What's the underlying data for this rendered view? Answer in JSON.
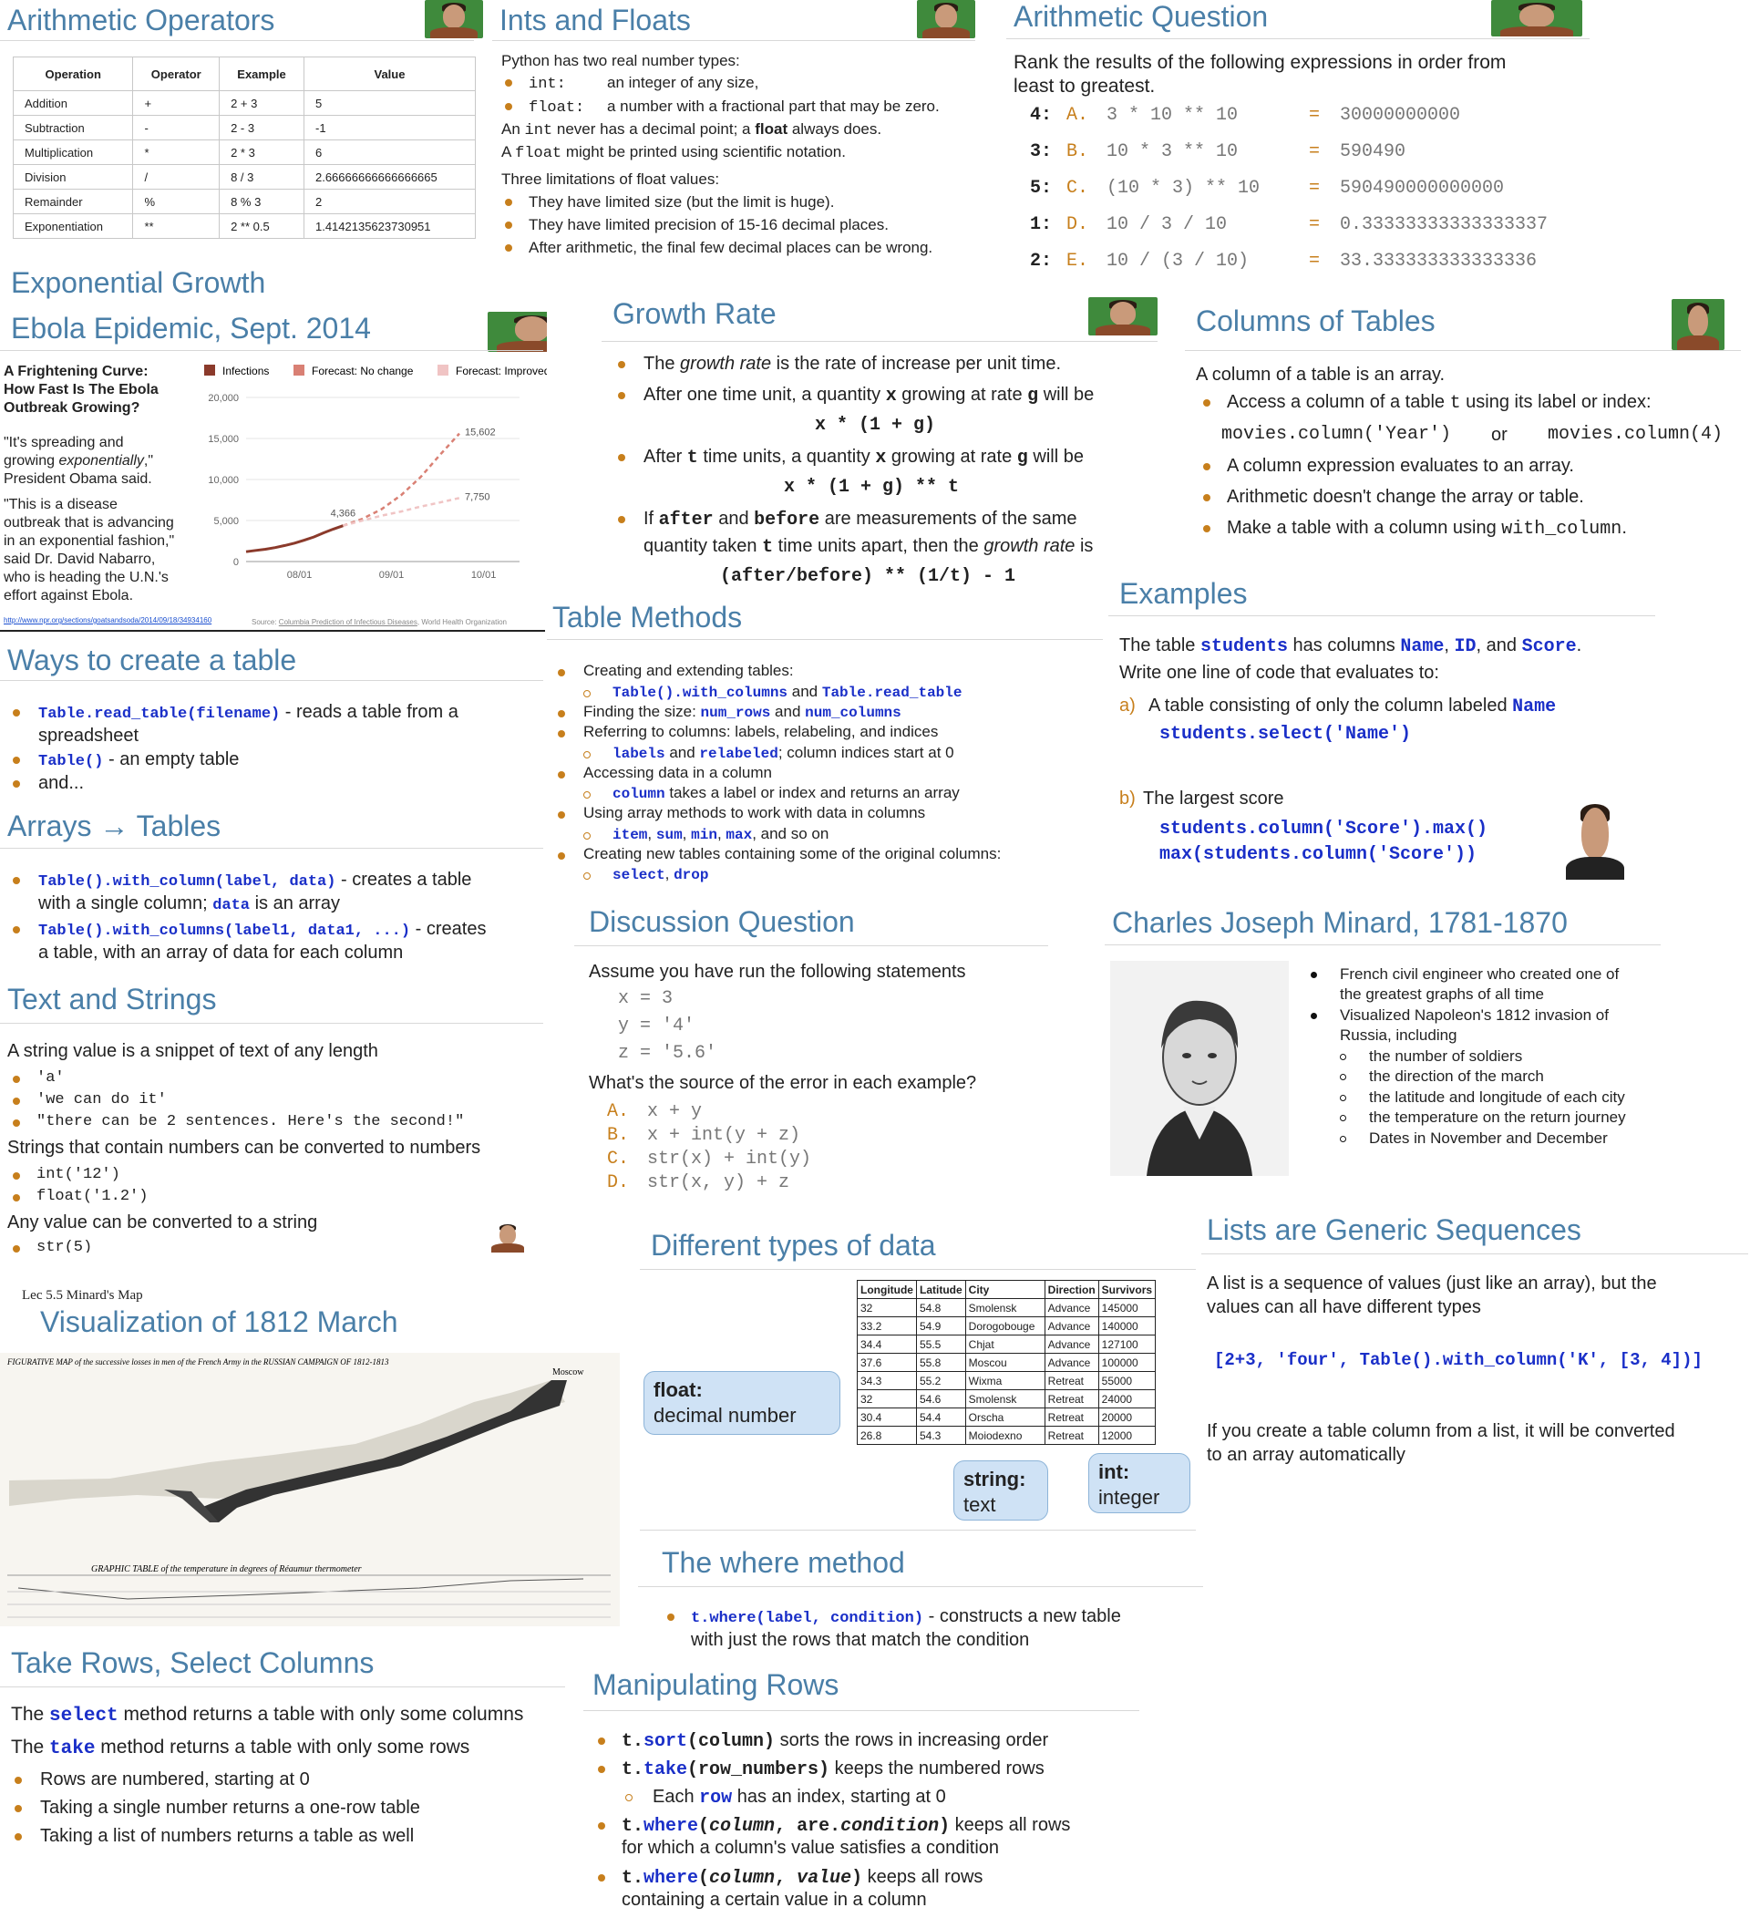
{
  "arith_ops": {
    "title": "Arithmetic Operators",
    "headers": [
      "Operation",
      "Operator",
      "Example",
      "Value"
    ],
    "rows": [
      [
        "Addition",
        "+",
        "2 + 3",
        "5"
      ],
      [
        "Subtraction",
        "-",
        "2 - 3",
        "-1"
      ],
      [
        "Multiplication",
        "*",
        "2 * 3",
        "6"
      ],
      [
        "Division",
        "/",
        "8 / 3",
        "2.66666666666666665"
      ],
      [
        "Remainder",
        "%",
        "8 % 3",
        "2"
      ],
      [
        "Exponentiation",
        "**",
        "2 ** 0.5",
        "1.4142135623730951"
      ]
    ]
  },
  "ints_floats": {
    "title": "Ints and Floats",
    "intro": "Python has two real number types:",
    "b1_code": "int:",
    "b1_text": "an integer of any size,",
    "b2_code": "float:",
    "b2_text": "a number with a fractional part that may be zero.",
    "l3_a": "An ",
    "l3_code1": "int",
    "l3_b": " never has a decimal point; a ",
    "l3_bold": "float",
    "l3_c": " always does.",
    "l4_a": "A ",
    "l4_code": "float",
    "l4_b": " might be printed using scientific notation.",
    "limits": "Three limitations of float values:",
    "lim1": "They have limited size (but the limit is huge).",
    "lim2": "They have limited precision of 15-16 decimal places.",
    "lim3": "After arithmetic, the final few decimal places can be wrong."
  },
  "arith_q": {
    "title": "Arithmetic Question",
    "line1": "Rank the results of the following expressions in order from",
    "line2": "least to greatest.",
    "rows": [
      {
        "rank": "4:",
        "letter": "A.",
        "expr": "3 * 10 ** 10",
        "eq": "=",
        "val": "30000000000"
      },
      {
        "rank": "3:",
        "letter": "B.",
        "expr": "10 * 3 ** 10",
        "eq": "=",
        "val": "590490"
      },
      {
        "rank": "5:",
        "letter": "C.",
        "expr": "(10 * 3) ** 10",
        "eq": "=",
        "val": "590490000000000"
      },
      {
        "rank": "1:",
        "letter": "D.",
        "expr": "10 / 3 / 10",
        "eq": "=",
        "val": "0.33333333333333337"
      },
      {
        "rank": "2:",
        "letter": "E.",
        "expr": "10 / (3 / 10)",
        "eq": "=",
        "val": "33.333333333333336"
      }
    ]
  },
  "ebola": {
    "title1": "Exponential Growth",
    "title2": "Ebola Epidemic, Sept. 2014",
    "headline": "A Frightening Curve: How Fast Is The Ebola Outbreak Growing?",
    "head_l1": "A Frightening Curve:",
    "head_l2": "How Fast Is The Ebola",
    "head_l3": "Outbreak Growing?",
    "q1_l1": "\"It's spreading and",
    "q1_l2a": "growing ",
    "q1_l2i": "exponentially",
    "q1_l2b": ",\"",
    "q1_l3": "President Obama said.",
    "q2_l1": "\"This is a disease",
    "q2_l2": "outbreak that is advancing",
    "q2_l3": "in an exponential fashion,\"",
    "q2_l4": "said Dr. David Nabarro,",
    "q2_l5": "who is heading the U.N.'s",
    "q2_l6": "effort against Ebola.",
    "url": "http://www.npr.org/sections/goatsandsoda/2014/09/18/34934160",
    "source_a": "Source: ",
    "source_link": "Columbia Prediction of Infectious Diseases",
    "source_b": ", World Health Organization"
  },
  "chart_data": {
    "type": "line",
    "legend": [
      "Infections",
      "Forecast: No change",
      "Forecast: Improved"
    ],
    "legend_placement": "top",
    "y_ticks": [
      "0",
      "5,000",
      "10,000",
      "15,000",
      "20,000"
    ],
    "x_ticks": [
      "08/01",
      "09/01",
      "10/01"
    ],
    "ylim": [
      0,
      20000
    ],
    "colors": {
      "infections": "#8b3a2b",
      "no_change": "#d98074",
      "improved": "#f0c4c4"
    },
    "series": [
      {
        "name": "Infections",
        "x": [
          0,
          0.1,
          0.2,
          0.3,
          0.4,
          0.5,
          0.6,
          0.7,
          0.8,
          0.9,
          1.0
        ],
        "values": [
          1200,
          1350,
          1500,
          1700,
          1950,
          2250,
          2600,
          3000,
          3500,
          3950,
          4366
        ]
      },
      {
        "name": "Forecast: No change",
        "x": [
          1.0,
          1.2,
          1.4,
          1.6,
          1.8,
          2.0,
          2.2
        ],
        "values": [
          4366,
          5200,
          6400,
          8100,
          10300,
          13000,
          15602
        ]
      },
      {
        "name": "Forecast: Improved",
        "x": [
          1.0,
          1.2,
          1.4,
          1.6,
          1.8,
          2.0,
          2.2
        ],
        "values": [
          4366,
          5000,
          5600,
          6100,
          6700,
          7200,
          7750
        ]
      }
    ],
    "labels": [
      "4,366",
      "15,602",
      "7,750"
    ]
  },
  "growth": {
    "title": "Growth Rate",
    "b1_a": "The ",
    "b1_i": "growth rate",
    "b1_b": " is the rate of increase per unit time.",
    "b2_a": "After one time unit, a quantity ",
    "b2_x": "x",
    "b2_b": " growing at rate ",
    "b2_g": "g",
    "b2_c": " will be",
    "f1": "x * (1 + g)",
    "b3_a": "After ",
    "b3_t": "t",
    "b3_b": " time units, a quantity ",
    "b3_x": "x",
    "b3_c": " growing at rate ",
    "b3_g": "g",
    "b3_d": " will be",
    "f2": "x * (1 + g) ** t",
    "b4_a": "If ",
    "b4_after": "after",
    "b4_b": " and ",
    "b4_before": "before",
    "b4_c": " are measurements of the same",
    "b4_l2a": "quantity taken ",
    "b4_l2t": "t",
    "b4_l2b": " time units apart, then the ",
    "b4_l2i": "growth rate",
    "b4_l2c": " is",
    "f3": "(after/before) ** (1/t) - 1"
  },
  "columns": {
    "title": "Columns of Tables",
    "intro": "A column of a table is an array.",
    "b1_a": "Access a column of a table ",
    "b1_code": "t",
    "b1_b": " using its label or index:",
    "code1": "movies.column('Year')",
    "or": "or",
    "code2": "movies.column(4)",
    "b2": "A column expression evaluates to an array.",
    "b3": "Arithmetic doesn't change the array or table.",
    "b4_a": "Make a table with a column using ",
    "b4_code": "with_column",
    "b4_b": "."
  },
  "ways": {
    "title": "Ways to create a table",
    "b1_code": "Table.read_table(filename)",
    "b1_text": " - reads a table from a",
    "b1_l2": "spreadsheet",
    "b2_code": "Table()",
    "b2_text": " - an empty table",
    "b3": "and..."
  },
  "arrays_tables": {
    "title": "Arrays → Tables",
    "b1_code": "Table().with_column(label, data)",
    "b1_text": " - creates a table",
    "b1_l2a": "with a single column; ",
    "b1_l2code": "data",
    "b1_l2b": " is an array",
    "b2_code": "Table().with_columns(label1, data1, ...)",
    "b2_text": " - creates",
    "b2_l2": "a table, with an array of data for each column"
  },
  "strings": {
    "title": "Text and Strings",
    "intro": "A string value is a snippet of text of any length",
    "s1": "'a'",
    "s2": "'we can do it'",
    "s3": "\"there can be 2 sentences. Here's the second!\"",
    "conv": "Strings that contain numbers can be converted to numbers",
    "c1": "int('12')",
    "c2": "float('1.2')",
    "any": "Any value can be converted to a string",
    "a1": "str(5)"
  },
  "table_methods": {
    "title": "Table Methods",
    "i1": "Creating and extending tables:",
    "i1s_code1": "Table().with_columns",
    "i1s_and": " and ",
    "i1s_code2": "Table.read_table",
    "i2_a": "Finding the size: ",
    "i2_code1": "num_rows",
    "i2_and": " and ",
    "i2_code2": "num_columns",
    "i3": "Referring to columns: labels, relabeling, and indices",
    "i3s_code1": "labels",
    "i3s_and": " and ",
    "i3s_code2": "relabeled",
    "i3s_b": "; column indices start at 0",
    "i4": "Accessing data in a column",
    "i4s_code": "column",
    "i4s_b": " takes a label or index and returns an array",
    "i5": "Using array methods to work with data in columns",
    "i5s_code1": "item",
    "i5s_c": ", ",
    "i5s_code2": "sum",
    "i5s_c2": ", ",
    "i5s_code3": "min",
    "i5s_c3": ", ",
    "i5s_code4": "max",
    "i5s_b": ", and so on",
    "i6": "Creating new tables containing some of the original columns:",
    "i6s_code1": "select",
    "i6s_c": ", ",
    "i6s_code2": "drop"
  },
  "examples": {
    "title": "Examples",
    "l1_a": "The table ",
    "l1_code": "students",
    "l1_b": " has columns ",
    "l1_c1": "Name",
    "l1_c": ", ",
    "l1_c2": "ID",
    "l1_and": ", and ",
    "l1_c3": "Score",
    "l1_end": ".",
    "l2": "Write one line of code that evaluates to:",
    "a_label": "a)",
    "a_text": "A table consisting of only the column labeled ",
    "a_code": "Name",
    "a_ans": "students.select('Name')",
    "b_label": "b)",
    "b_text": "The largest score",
    "b_ans1": "students.column('Score').max()",
    "b_ans2": "max(students.column('Score'))"
  },
  "discussion": {
    "title": "Discussion Question",
    "intro": "Assume you have run the following statements",
    "s1": "x = 3",
    "s2": "y = '4'",
    "s3": "z = '5.6'",
    "q": "What's the source of the error in each example?",
    "opts": [
      {
        "l": "A.",
        "c": "x + y"
      },
      {
        "l": "B.",
        "c": "x + int(y + z)"
      },
      {
        "l": "C.",
        "c": "str(x) + int(y)"
      },
      {
        "l": "D.",
        "c": "str(x, y) + z"
      }
    ]
  },
  "minard": {
    "title": "Charles Joseph Minard, 1781-1870",
    "b1_l1": "French civil engineer who created one of",
    "b1_l2": "the greatest graphs of all time",
    "b2_l1": "Visualized Napoleon's 1812 invasion of",
    "b2_l2": "Russia, including",
    "s1": "the number of soldiers",
    "s2": "the direction of the march",
    "s3": "the latitude and longitude of each city",
    "s4": "the temperature on the return journey",
    "s5": "Dates in November and December"
  },
  "viz1812": {
    "lecture": "Lec 5.5 Minard's Map",
    "title": "Visualization of 1812 March",
    "map_title": "FIGURATIVE MAP of the successive losses in men of the French Army in the RUSSIAN CAMPAIGN OF 1812-1813",
    "moscow": "Moscow",
    "temp_title": "GRAPHIC TABLE of the temperature in degrees of Réaumur thermometer"
  },
  "types": {
    "title": "Different types of data",
    "headers": [
      "Longitude",
      "Latitude",
      "City",
      "Direction",
      "Survivors"
    ],
    "rows": [
      [
        "32",
        "54.8",
        "Smolensk",
        "Advance",
        "145000"
      ],
      [
        "33.2",
        "54.9",
        "Dorogobouge",
        "Advance",
        "140000"
      ],
      [
        "34.4",
        "55.5",
        "Chjat",
        "Advance",
        "127100"
      ],
      [
        "37.6",
        "55.8",
        "Moscou",
        "Advance",
        "100000"
      ],
      [
        "34.3",
        "55.2",
        "Wixma",
        "Retreat",
        "55000"
      ],
      [
        "32",
        "54.6",
        "Smolensk",
        "Retreat",
        "24000"
      ],
      [
        "30.4",
        "54.4",
        "Orscha",
        "Retreat",
        "20000"
      ],
      [
        "26.8",
        "54.3",
        "Moiodexno",
        "Retreat",
        "12000"
      ]
    ],
    "float_b": "float:",
    "float_t": "decimal number",
    "string_b": "string:",
    "string_t": "text",
    "int_b": "int:",
    "int_t": "integer"
  },
  "lists": {
    "title": "Lists are Generic Sequences",
    "l1": "A list is a sequence of values (just like an array), but the",
    "l2": "values can all have different types",
    "code": "[2+3, 'four', Table().with_column('K', [3, 4])]",
    "p1": "If you create a table column from a list, it will be converted",
    "p2": "to an array automatically"
  },
  "where": {
    "title": "The where method",
    "b1_code": "t.where(label, condition)",
    "b1_text": " - constructs a new table",
    "b1_l2": "with just the rows that match the condition"
  },
  "take": {
    "title": "Take Rows, Select Columns",
    "l1_a": "The ",
    "l1_code": "select",
    "l1_b": " method returns a table with only some columns",
    "l2_a": "The ",
    "l2_code": "take",
    "l2_b": " method returns a table with only some rows",
    "b1": "Rows are numbered, starting at 0",
    "b2": "Taking a single number returns a one-row table",
    "b3": "Taking a list of numbers returns a table as well"
  },
  "manip": {
    "title": "Manipulating Rows",
    "b1_t": "t.",
    "b1_m": "sort",
    "b1_a": "(column)",
    "b1_text": " sorts the rows in increasing order",
    "b2_t": "t.",
    "b2_m": "take",
    "b2_a": "(row_numbers)",
    "b2_text": " keeps the numbered rows",
    "s1_a": "Each ",
    "s1_code": "row",
    "s1_b": " has an index, starting at 0",
    "b3_t": "t.",
    "b3_m": "where",
    "b3_a1": "(",
    "b3_i1": "column",
    "b3_a2": ", are.",
    "b3_i2": "condition",
    "b3_a3": ")",
    "b3_text": " keeps all rows",
    "b3_l2": "for which a column's value satisfies a condition",
    "b4_t": "t.",
    "b4_m": "where",
    "b4_a1": "(",
    "b4_i1": "column",
    "b4_a2": ", ",
    "b4_i2": "value",
    "b4_a3": ")",
    "b4_text": " keeps all rows",
    "b4_l2": "containing a certain value in a column"
  }
}
